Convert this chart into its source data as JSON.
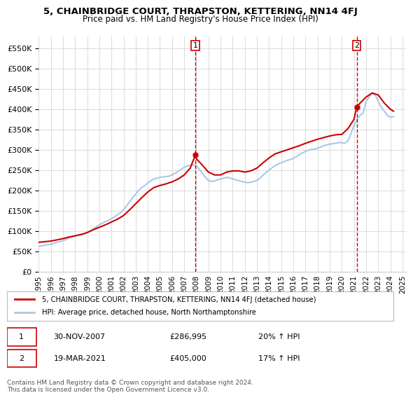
{
  "title": "5, CHAINBRIDGE COURT, THRAPSTON, KETTERING, NN14 4FJ",
  "subtitle": "Price paid vs. HM Land Registry's House Price Index (HPI)",
  "ylabel_ticks": [
    "£0",
    "£50K",
    "£100K",
    "£150K",
    "£200K",
    "£250K",
    "£300K",
    "£350K",
    "£400K",
    "£450K",
    "£500K",
    "£550K"
  ],
  "ytick_values": [
    0,
    50000,
    100000,
    150000,
    200000,
    250000,
    300000,
    350000,
    400000,
    450000,
    500000,
    550000
  ],
  "ylim": [
    0,
    580000
  ],
  "background_color": "#ffffff",
  "grid_color": "#dddddd",
  "red_color": "#cc0000",
  "blue_color": "#aac8e8",
  "marker1_year": 2007.92,
  "marker1_value": 286995,
  "marker1_label": "1",
  "marker2_year": 2021.22,
  "marker2_value": 405000,
  "marker2_label": "2",
  "legend_line1": "5, CHAINBRIDGE COURT, THRAPSTON, KETTERING, NN14 4FJ (detached house)",
  "legend_line2": "HPI: Average price, detached house, North Northamptonshire",
  "table_row1": [
    "1",
    "30-NOV-2007",
    "£286,995",
    "20% ↑ HPI"
  ],
  "table_row2": [
    "2",
    "19-MAR-2021",
    "£405,000",
    "17% ↑ HPI"
  ],
  "footnote": "Contains HM Land Registry data © Crown copyright and database right 2024.\nThis data is licensed under the Open Government Licence v3.0.",
  "hpi_years": [
    1995,
    1995.25,
    1995.5,
    1995.75,
    1996,
    1996.25,
    1996.5,
    1996.75,
    1997,
    1997.25,
    1997.5,
    1997.75,
    1998,
    1998.25,
    1998.5,
    1998.75,
    1999,
    1999.25,
    1999.5,
    1999.75,
    2000,
    2000.25,
    2000.5,
    2000.75,
    2001,
    2001.25,
    2001.5,
    2001.75,
    2002,
    2002.25,
    2002.5,
    2002.75,
    2003,
    2003.25,
    2003.5,
    2003.75,
    2004,
    2004.25,
    2004.5,
    2004.75,
    2005,
    2005.25,
    2005.5,
    2005.75,
    2006,
    2006.25,
    2006.5,
    2006.75,
    2007,
    2007.25,
    2007.5,
    2007.75,
    2008,
    2008.25,
    2008.5,
    2008.75,
    2009,
    2009.25,
    2009.5,
    2009.75,
    2010,
    2010.25,
    2010.5,
    2010.75,
    2011,
    2011.25,
    2011.5,
    2011.75,
    2012,
    2012.25,
    2012.5,
    2012.75,
    2013,
    2013.25,
    2013.5,
    2013.75,
    2014,
    2014.25,
    2014.5,
    2014.75,
    2015,
    2015.25,
    2015.5,
    2015.75,
    2016,
    2016.25,
    2016.5,
    2016.75,
    2017,
    2017.25,
    2017.5,
    2017.75,
    2018,
    2018.25,
    2018.5,
    2018.75,
    2019,
    2019.25,
    2019.5,
    2019.75,
    2020,
    2020.25,
    2020.5,
    2020.75,
    2021,
    2021.25,
    2021.5,
    2021.75,
    2022,
    2022.25,
    2022.5,
    2022.75,
    2023,
    2023.25,
    2023.5,
    2023.75,
    2024,
    2024.25
  ],
  "hpi_values": [
    62000,
    63000,
    64500,
    66000,
    67500,
    69500,
    72000,
    74000,
    76000,
    79000,
    82000,
    85000,
    88000,
    90000,
    92000,
    93000,
    96000,
    100000,
    105000,
    110000,
    115000,
    119000,
    123000,
    126000,
    130000,
    135000,
    140000,
    145000,
    152000,
    162000,
    172000,
    182000,
    191000,
    200000,
    207000,
    212000,
    218000,
    224000,
    228000,
    230000,
    232000,
    233000,
    234000,
    235000,
    238000,
    242000,
    247000,
    252000,
    257000,
    260000,
    262000,
    263000,
    260000,
    252000,
    242000,
    232000,
    224000,
    222000,
    223000,
    226000,
    228000,
    230000,
    232000,
    231000,
    228000,
    226000,
    224000,
    222000,
    220000,
    219000,
    220000,
    222000,
    225000,
    230000,
    237000,
    244000,
    250000,
    256000,
    261000,
    265000,
    268000,
    271000,
    274000,
    276000,
    279000,
    283000,
    288000,
    292000,
    296000,
    299000,
    301000,
    302000,
    304000,
    307000,
    310000,
    312000,
    314000,
    315000,
    316000,
    318000,
    317000,
    316000,
    322000,
    340000,
    360000,
    375000,
    385000,
    390000,
    420000,
    430000,
    440000,
    435000,
    420000,
    405000,
    395000,
    385000,
    380000,
    382000
  ],
  "red_years": [
    1995,
    1995.5,
    1996,
    1996.5,
    1997,
    1997.5,
    1998,
    1998.5,
    1999,
    1999.5,
    2000,
    2000.5,
    2001,
    2001.5,
    2002,
    2002.5,
    2003,
    2003.5,
    2004,
    2004.5,
    2005,
    2005.5,
    2006,
    2006.5,
    2007,
    2007.5,
    2007.92,
    2008,
    2008.5,
    2009,
    2009.5,
    2010,
    2010.5,
    2011,
    2011.5,
    2012,
    2012.5,
    2013,
    2013.5,
    2014,
    2014.5,
    2015,
    2015.5,
    2016,
    2016.5,
    2017,
    2017.5,
    2018,
    2018.5,
    2019,
    2019.5,
    2020,
    2020.5,
    2021,
    2021.22,
    2021.5,
    2022,
    2022.5,
    2023,
    2023.5,
    2024,
    2024.25
  ],
  "red_values": [
    72000,
    73500,
    75000,
    78000,
    81000,
    85000,
    88000,
    91000,
    96000,
    103000,
    109000,
    115000,
    122000,
    129000,
    138000,
    152000,
    167000,
    182000,
    196000,
    207000,
    212000,
    216000,
    221000,
    228000,
    238000,
    255000,
    286995,
    278000,
    262000,
    245000,
    238000,
    238000,
    245000,
    248000,
    248000,
    245000,
    248000,
    255000,
    268000,
    280000,
    290000,
    295000,
    300000,
    305000,
    310000,
    316000,
    321000,
    326000,
    330000,
    334000,
    337000,
    338000,
    352000,
    375000,
    405000,
    415000,
    430000,
    440000,
    435000,
    415000,
    400000,
    395000
  ],
  "xtick_years": [
    1995,
    1996,
    1997,
    1998,
    1999,
    2000,
    2001,
    2002,
    2003,
    2004,
    2005,
    2006,
    2007,
    2008,
    2009,
    2010,
    2011,
    2012,
    2013,
    2014,
    2015,
    2016,
    2017,
    2018,
    2019,
    2020,
    2021,
    2022,
    2023,
    2024,
    2025
  ]
}
